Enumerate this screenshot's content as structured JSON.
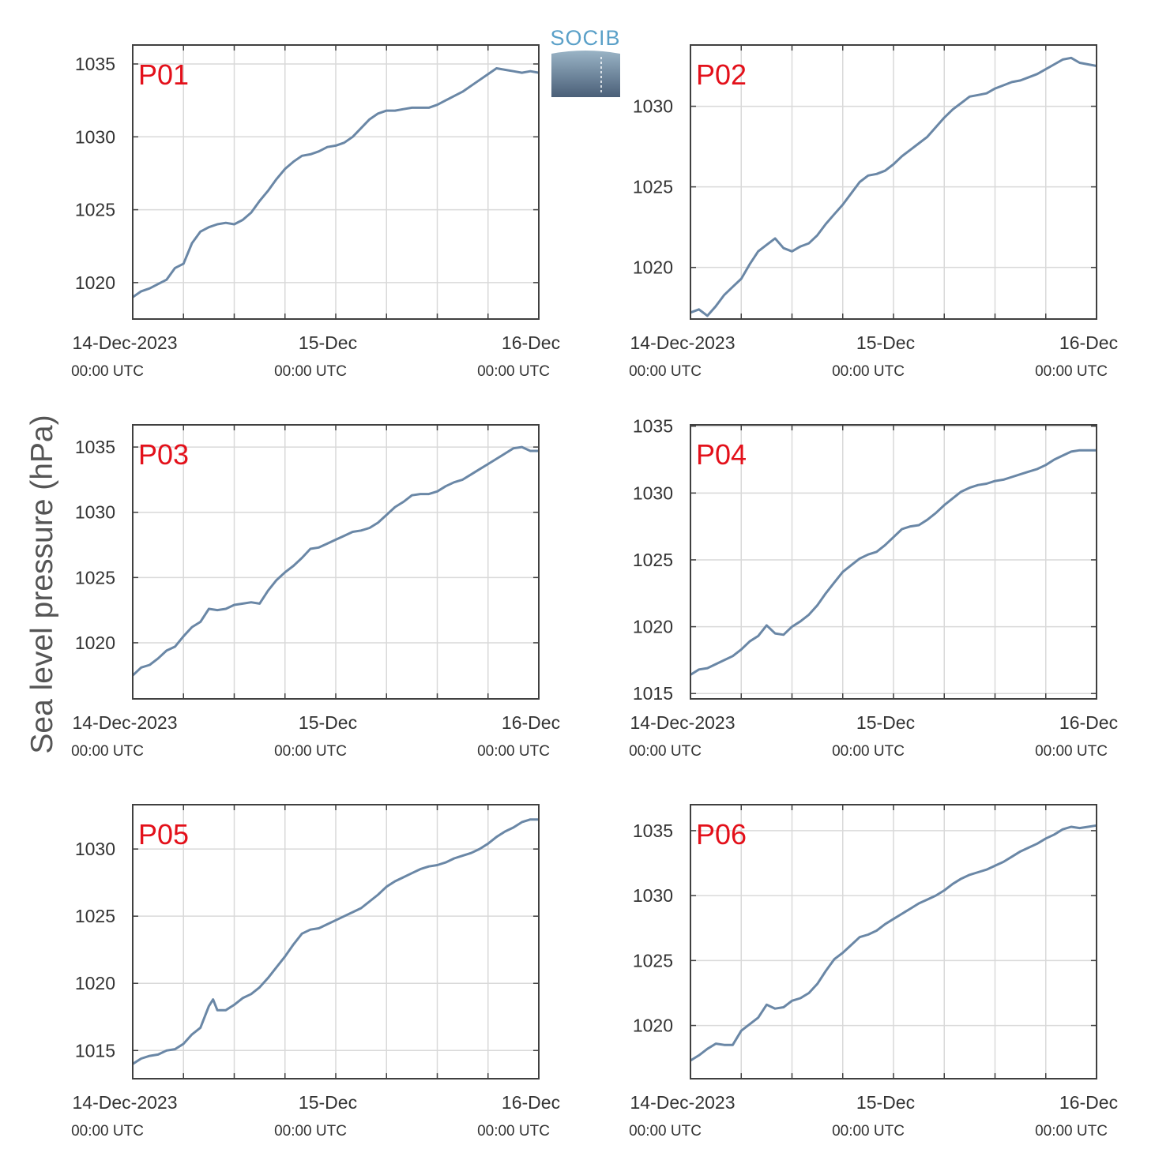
{
  "ylabel": "Sea level pressure (hPa)",
  "logo": {
    "text": "SOCIB"
  },
  "colors": {
    "line": "#6a87a6",
    "grid": "#d9d9d9",
    "frame": "#404040",
    "panel_label": "#e3101a"
  },
  "x_ticks": {
    "positions": [
      0,
      24,
      48
    ],
    "labels": [
      "14-Dec-2023",
      "15-Dec",
      "16-Dec"
    ],
    "sublabels": [
      "00:00 UTC",
      "00:00 UTC",
      "00:00 UTC"
    ]
  },
  "chart_data": [
    {
      "type": "line",
      "label": "P01",
      "x_unit": "hours since 14-Dec-2023 00:00 UTC",
      "xlim": [
        0,
        48
      ],
      "ylim": [
        1017.5,
        1036.3
      ],
      "yticks": [
        1020,
        1025,
        1030,
        1035
      ],
      "x": [
        0,
        1,
        2,
        3,
        4,
        5,
        6,
        7,
        8,
        9,
        10,
        11,
        12,
        13,
        14,
        15,
        16,
        17,
        18,
        19,
        20,
        21,
        22,
        23,
        24,
        25,
        26,
        27,
        28,
        29,
        30,
        31,
        32,
        33,
        34,
        35,
        36,
        37,
        38,
        39,
        40,
        41,
        42,
        43,
        44,
        45,
        46,
        47,
        48
      ],
      "y": [
        1019.0,
        1019.4,
        1019.6,
        1019.9,
        1020.2,
        1021.0,
        1021.3,
        1022.7,
        1023.5,
        1023.8,
        1024.0,
        1024.1,
        1024.0,
        1024.3,
        1024.8,
        1025.6,
        1026.3,
        1027.1,
        1027.8,
        1028.3,
        1028.7,
        1028.8,
        1029.0,
        1029.3,
        1029.4,
        1029.6,
        1030.0,
        1030.6,
        1031.2,
        1031.6,
        1031.8,
        1031.8,
        1031.9,
        1032.0,
        1032.0,
        1032.0,
        1032.2,
        1032.5,
        1032.8,
        1033.1,
        1033.5,
        1033.9,
        1034.3,
        1034.7,
        1034.6,
        1034.5,
        1034.4,
        1034.5,
        1034.4
      ]
    },
    {
      "type": "line",
      "label": "P02",
      "x_unit": "hours since 14-Dec-2023 00:00 UTC",
      "xlim": [
        0,
        48
      ],
      "ylim": [
        1016.8,
        1033.8
      ],
      "yticks": [
        1020,
        1025,
        1030
      ],
      "x": [
        0,
        1,
        2,
        3,
        4,
        5,
        6,
        7,
        8,
        9,
        10,
        11,
        12,
        13,
        14,
        15,
        16,
        17,
        18,
        19,
        20,
        21,
        22,
        23,
        24,
        25,
        26,
        27,
        28,
        29,
        30,
        31,
        32,
        33,
        34,
        35,
        36,
        37,
        38,
        39,
        40,
        41,
        42,
        43,
        44,
        45,
        46,
        47,
        48
      ],
      "y": [
        1017.2,
        1017.4,
        1017.0,
        1017.6,
        1018.3,
        1018.8,
        1019.3,
        1020.2,
        1021.0,
        1021.4,
        1021.8,
        1021.2,
        1021.0,
        1021.3,
        1021.5,
        1022.0,
        1022.7,
        1023.3,
        1023.9,
        1024.6,
        1025.3,
        1025.7,
        1025.8,
        1026.0,
        1026.4,
        1026.9,
        1027.3,
        1027.7,
        1028.1,
        1028.7,
        1029.3,
        1029.8,
        1030.2,
        1030.6,
        1030.7,
        1030.8,
        1031.1,
        1031.3,
        1031.5,
        1031.6,
        1031.8,
        1032.0,
        1032.3,
        1032.6,
        1032.9,
        1033.0,
        1032.7,
        1032.6,
        1032.5
      ]
    },
    {
      "type": "line",
      "label": "P03",
      "x_unit": "hours since 14-Dec-2023 00:00 UTC",
      "xlim": [
        0,
        48
      ],
      "ylim": [
        1015.7,
        1036.7
      ],
      "yticks": [
        1020,
        1025,
        1030,
        1035
      ],
      "x": [
        0,
        1,
        2,
        3,
        4,
        5,
        6,
        7,
        8,
        9,
        10,
        11,
        12,
        13,
        14,
        15,
        16,
        17,
        18,
        19,
        20,
        21,
        22,
        23,
        24,
        25,
        26,
        27,
        28,
        29,
        30,
        31,
        32,
        33,
        34,
        35,
        36,
        37,
        38,
        39,
        40,
        41,
        42,
        43,
        44,
        45,
        46,
        47,
        48
      ],
      "y": [
        1017.5,
        1018.1,
        1018.3,
        1018.8,
        1019.4,
        1019.7,
        1020.5,
        1021.2,
        1021.6,
        1022.6,
        1022.5,
        1022.6,
        1022.9,
        1023.0,
        1023.1,
        1023.0,
        1024.0,
        1024.8,
        1025.4,
        1025.9,
        1026.5,
        1027.2,
        1027.3,
        1027.6,
        1027.9,
        1028.2,
        1028.5,
        1028.6,
        1028.8,
        1029.2,
        1029.8,
        1030.4,
        1030.8,
        1031.3,
        1031.4,
        1031.4,
        1031.6,
        1032.0,
        1032.3,
        1032.5,
        1032.9,
        1033.3,
        1033.7,
        1034.1,
        1034.5,
        1034.9,
        1035.0,
        1034.7,
        1034.7
      ]
    },
    {
      "type": "line",
      "label": "P04",
      "x_unit": "hours since 14-Dec-2023 00:00 UTC",
      "xlim": [
        0,
        48
      ],
      "ylim": [
        1014.6,
        1035.1
      ],
      "yticks": [
        1015,
        1020,
        1025,
        1030,
        1035
      ],
      "x": [
        0,
        1,
        2,
        3,
        4,
        5,
        6,
        7,
        8,
        9,
        10,
        11,
        12,
        13,
        14,
        15,
        16,
        17,
        18,
        19,
        20,
        21,
        22,
        23,
        24,
        25,
        26,
        27,
        28,
        29,
        30,
        31,
        32,
        33,
        34,
        35,
        36,
        37,
        38,
        39,
        40,
        41,
        42,
        43,
        44,
        45,
        46,
        47,
        48
      ],
      "y": [
        1016.4,
        1016.8,
        1016.9,
        1017.2,
        1017.5,
        1017.8,
        1018.3,
        1018.9,
        1019.3,
        1020.1,
        1019.5,
        1019.4,
        1020.0,
        1020.4,
        1020.9,
        1021.6,
        1022.5,
        1023.3,
        1024.1,
        1024.6,
        1025.1,
        1025.4,
        1025.6,
        1026.1,
        1026.7,
        1027.3,
        1027.5,
        1027.6,
        1028.0,
        1028.5,
        1029.1,
        1029.6,
        1030.1,
        1030.4,
        1030.6,
        1030.7,
        1030.9,
        1031.0,
        1031.2,
        1031.4,
        1031.6,
        1031.8,
        1032.1,
        1032.5,
        1032.8,
        1033.1,
        1033.2,
        1033.2,
        1033.2
      ]
    },
    {
      "type": "line",
      "label": "P05",
      "x_unit": "hours since 14-Dec-2023 00:00 UTC",
      "xlim": [
        0,
        48
      ],
      "ylim": [
        1012.9,
        1033.3
      ],
      "yticks": [
        1015,
        1020,
        1025,
        1030
      ],
      "x": [
        0,
        1,
        2,
        3,
        4,
        5,
        6,
        7,
        8,
        9,
        9.5,
        10,
        11,
        12,
        13,
        14,
        15,
        16,
        17,
        18,
        19,
        20,
        21,
        22,
        23,
        24,
        25,
        26,
        27,
        28,
        29,
        30,
        31,
        32,
        33,
        34,
        35,
        36,
        37,
        38,
        39,
        40,
        41,
        42,
        43,
        44,
        45,
        46,
        47,
        48
      ],
      "y": [
        1014.0,
        1014.4,
        1014.6,
        1014.7,
        1015.0,
        1015.1,
        1015.5,
        1016.2,
        1016.7,
        1018.3,
        1018.8,
        1018.0,
        1018.0,
        1018.4,
        1018.9,
        1019.2,
        1019.7,
        1020.4,
        1021.2,
        1022.0,
        1022.9,
        1023.7,
        1024.0,
        1024.1,
        1024.4,
        1024.7,
        1025.0,
        1025.3,
        1025.6,
        1026.1,
        1026.6,
        1027.2,
        1027.6,
        1027.9,
        1028.2,
        1028.5,
        1028.7,
        1028.8,
        1029.0,
        1029.3,
        1029.5,
        1029.7,
        1030.0,
        1030.4,
        1030.9,
        1031.3,
        1031.6,
        1032.0,
        1032.2,
        1032.2
      ]
    },
    {
      "type": "line",
      "label": "P06",
      "x_unit": "hours since 14-Dec-2023 00:00 UTC",
      "xlim": [
        0,
        48
      ],
      "ylim": [
        1015.9,
        1037.0
      ],
      "yticks": [
        1020,
        1025,
        1030,
        1035
      ],
      "x": [
        0,
        1,
        2,
        3,
        4,
        5,
        6,
        7,
        8,
        9,
        10,
        11,
        12,
        13,
        14,
        15,
        16,
        17,
        18,
        19,
        20,
        21,
        22,
        23,
        24,
        25,
        26,
        27,
        28,
        29,
        30,
        31,
        32,
        33,
        34,
        35,
        36,
        37,
        38,
        39,
        40,
        41,
        42,
        43,
        44,
        45,
        46,
        47,
        48
      ],
      "y": [
        1017.3,
        1017.7,
        1018.2,
        1018.6,
        1018.5,
        1018.5,
        1019.6,
        1020.1,
        1020.6,
        1021.6,
        1021.3,
        1021.4,
        1021.9,
        1022.1,
        1022.5,
        1023.2,
        1024.2,
        1025.1,
        1025.6,
        1026.2,
        1026.8,
        1027.0,
        1027.3,
        1027.8,
        1028.2,
        1028.6,
        1029.0,
        1029.4,
        1029.7,
        1030.0,
        1030.4,
        1030.9,
        1031.3,
        1031.6,
        1031.8,
        1032.0,
        1032.3,
        1032.6,
        1033.0,
        1033.4,
        1033.7,
        1034.0,
        1034.4,
        1034.7,
        1035.1,
        1035.3,
        1035.2,
        1035.3,
        1035.4
      ]
    }
  ]
}
